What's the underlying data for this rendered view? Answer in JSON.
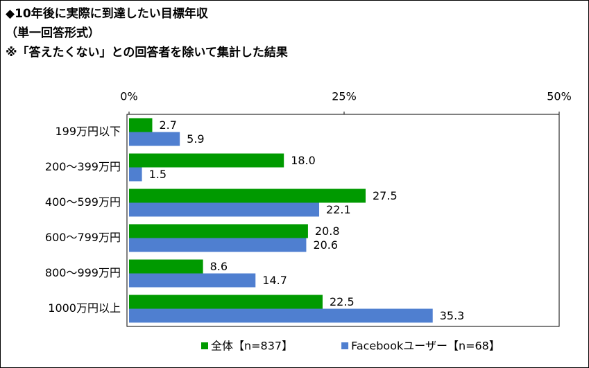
{
  "chart_data": {
    "type": "hbar",
    "title": "◆10年後に実際に到達したい目標年収",
    "subtitle": "（単一回答形式）",
    "note": "※「答えたくない」との回答者を除いて集計した結果",
    "categories": [
      "199万円以下",
      "200～399万円",
      "400～599万円",
      "600～799万円",
      "800～999万円",
      "1000万円以上"
    ],
    "series": [
      {
        "name": "全体【n=837】",
        "color": "#009a00",
        "values": [
          2.7,
          18.0,
          27.5,
          20.8,
          8.6,
          22.5
        ],
        "value_labels": [
          "2.7",
          "18.0",
          "27.5",
          "20.8",
          "8.6",
          "22.5"
        ]
      },
      {
        "name": "Facebookユーザー【n=68】",
        "color": "#4f7fd0",
        "values": [
          5.9,
          1.5,
          22.1,
          20.6,
          14.7,
          35.3
        ],
        "value_labels": [
          "5.9",
          "1.5",
          "22.1",
          "20.6",
          "14.7",
          "35.3"
        ]
      }
    ],
    "xlim": [
      0,
      50
    ],
    "xticks": [
      {
        "value": 0,
        "label": "0%"
      },
      {
        "value": 25,
        "label": "25%"
      },
      {
        "value": 50,
        "label": "50%"
      }
    ],
    "legend": "bottom"
  }
}
